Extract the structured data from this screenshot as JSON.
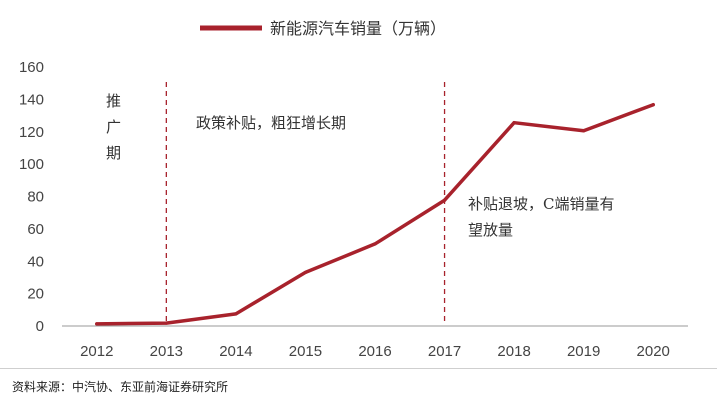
{
  "chart_data": {
    "type": "line",
    "categories": [
      "2012",
      "2013",
      "2014",
      "2015",
      "2016",
      "2017",
      "2018",
      "2019",
      "2020"
    ],
    "series": [
      {
        "name": "新能源汽车销量（万辆）",
        "values": [
          1.3,
          1.8,
          7.5,
          33.1,
          50.7,
          77.7,
          125.6,
          120.6,
          136.7
        ],
        "color": "#a8222c"
      }
    ],
    "ylim": [
      0,
      160
    ],
    "yticks": [
      "0",
      "20",
      "40",
      "60",
      "80",
      "100",
      "120",
      "140",
      "160"
    ],
    "grid": false,
    "legend": "top-center",
    "phase_lines": [
      {
        "after": "2013",
        "color": "#a8222c",
        "style": "dashed"
      },
      {
        "after": "2017",
        "color": "#a8222c",
        "style": "dashed"
      }
    ],
    "annotations": {
      "phase1": [
        "推",
        "广",
        "期"
      ],
      "phase2": "政策补贴，粗狂增长期",
      "phase3": [
        "补贴退坡，C端销量有",
        "望放量"
      ]
    },
    "title": "",
    "xlabel": "",
    "ylabel": ""
  },
  "footer": {
    "source": "资料来源：中汽协、东亚前海证券研究所"
  }
}
